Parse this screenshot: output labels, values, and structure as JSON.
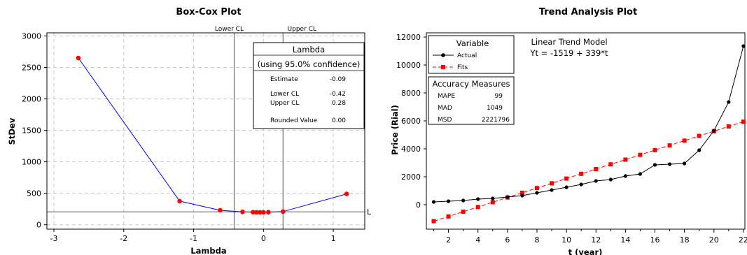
{
  "chart_data": [
    {
      "type": "line",
      "title": "Box-Cox Plot",
      "xlabel": "Lambda",
      "ylabel": "StDev",
      "xlim": [
        -3.1,
        1.45
      ],
      "ylim": [
        -70,
        3050
      ],
      "xticks": [
        -3,
        -2,
        -1,
        0,
        1
      ],
      "yticks": [
        0,
        500,
        1000,
        1500,
        2000,
        2500,
        3000
      ],
      "grid": true,
      "series": [
        {
          "x": [
            -2.65,
            -1.2,
            -0.62,
            -0.3,
            -0.15,
            -0.1,
            -0.05,
            0.0,
            0.07,
            0.28,
            1.19
          ],
          "y": [
            2650,
            375,
            230,
            205,
            200,
            198,
            197,
            198,
            200,
            210,
            490
          ]
        }
      ],
      "reference_lines": {
        "lower_cl": {
          "x": -0.42,
          "label": "Lower CL"
        },
        "upper_cl": {
          "x": 0.28,
          "label": "Upper CL"
        },
        "limit": {
          "y": 205,
          "label": "Limit"
        }
      },
      "info_box": {
        "header": "Lambda",
        "subheader": "(using 95.0% confidence)",
        "rows": [
          {
            "label": "Estimate",
            "value": "-0.09"
          },
          {
            "label": "Lower CL",
            "value": "-0.42"
          },
          {
            "label": "Upper CL",
            "value": "0.28"
          },
          {
            "label": "Rounded Value",
            "value": "0.00"
          }
        ]
      },
      "colors": {
        "line": "#0000ff",
        "marker": "#ff0000"
      }
    },
    {
      "type": "line",
      "title": "Trend Analysis Plot",
      "xlabel": "t (year)",
      "ylabel": "Price (Rial)",
      "xlim": [
        0.5,
        22.1
      ],
      "ylim": [
        -1750,
        12300
      ],
      "xticks": [
        2,
        4,
        6,
        8,
        10,
        12,
        14,
        16,
        18,
        20,
        22
      ],
      "yticks": [
        0,
        2000,
        4000,
        6000,
        8000,
        10000,
        12000
      ],
      "grid": false,
      "categories": [
        1,
        2,
        3,
        4,
        5,
        6,
        7,
        8,
        9,
        10,
        11,
        12,
        13,
        14,
        15,
        16,
        17,
        18,
        19,
        20,
        21,
        22
      ],
      "series": [
        {
          "name": "Actual",
          "values": [
            200,
            250,
            300,
            400,
            450,
            550,
            650,
            850,
            1050,
            1250,
            1450,
            1700,
            1800,
            2050,
            2200,
            2850,
            2900,
            2950,
            3900,
            5300,
            7350,
            11350
          ],
          "color": "#000000",
          "marker": "circle",
          "dash": "solid"
        },
        {
          "name": "Fits",
          "values": [
            -1180,
            -841,
            -502,
            -163,
            176,
            515,
            854,
            1193,
            1532,
            1871,
            2210,
            2549,
            2888,
            3227,
            3566,
            3905,
            4244,
            4583,
            4922,
            5261,
            5600,
            5939
          ],
          "color": "#ff0000",
          "marker": "square",
          "dash": "dashed"
        }
      ],
      "legend": {
        "title": "Variable",
        "placement": "top-left"
      },
      "model_text": {
        "line1": "Linear Trend Model",
        "line2": "Yt = -1519 + 339*t"
      },
      "accuracy": {
        "title": "Accuracy Measures",
        "rows": [
          {
            "label": "MAPE",
            "value": "99"
          },
          {
            "label": "MAD",
            "value": "1049"
          },
          {
            "label": "MSD",
            "value": "2221796"
          }
        ]
      }
    }
  ]
}
